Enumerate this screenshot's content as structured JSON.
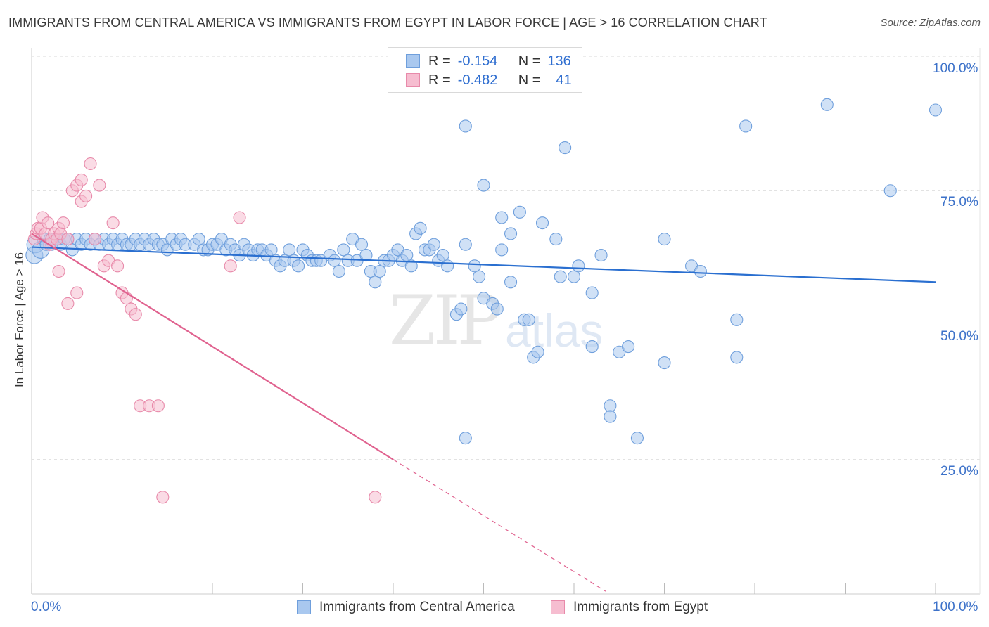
{
  "title": "IMMIGRANTS FROM CENTRAL AMERICA VS IMMIGRANTS FROM EGYPT IN LABOR FORCE | AGE > 16 CORRELATION CHART",
  "source": "Source: ZipAtlas.com",
  "watermark": {
    "zip": "ZIP",
    "atlas": "atlas"
  },
  "legend": {
    "rows": [
      {
        "r_label": "R =",
        "r_value": "-0.154",
        "n_label": "N =",
        "n_value": "136"
      },
      {
        "r_label": "R =",
        "r_value": "-0.482",
        "n_label": "N =",
        "n_value": "41"
      }
    ]
  },
  "colors": {
    "blue_fill": "#a9c8ef",
    "blue_stroke": "#6f9fdc",
    "blue_line": "#2a6fd0",
    "pink_fill": "#f6bdd0",
    "pink_stroke": "#e88aaa",
    "pink_line": "#e0628f",
    "grid": "#d8d8d8",
    "tick_label": "#3d72c9"
  },
  "chart_data": {
    "type": "scatter",
    "title": "IMMIGRANTS FROM CENTRAL AMERICA VS IMMIGRANTS FROM EGYPT IN LABOR FORCE | AGE > 16 CORRELATION CHART",
    "xlabel": "",
    "ylabel": "In Labor Force | Age > 16",
    "xlim": [
      0,
      100
    ],
    "ylim": [
      0,
      100
    ],
    "x_tick_labels": [
      "0.0%",
      "100.0%"
    ],
    "y_ticks": [
      {
        "value": 25,
        "label": "25.0%"
      },
      {
        "value": 50,
        "label": "50.0%"
      },
      {
        "value": 75,
        "label": "75.0%"
      },
      {
        "value": 100,
        "label": "100.0%"
      }
    ],
    "series": [
      {
        "name": "Immigrants from Central America",
        "R": -0.154,
        "N": 136,
        "trend": {
          "x0": 0,
          "y0": 64.5,
          "x1": 100,
          "y1": 58.0
        },
        "points": [
          [
            0.3,
            63
          ],
          [
            0.4,
            65
          ],
          [
            1,
            64
          ],
          [
            1.3,
            66
          ],
          [
            1.6,
            65
          ],
          [
            2,
            66
          ],
          [
            2.2,
            65
          ],
          [
            2.5,
            66
          ],
          [
            3,
            66
          ],
          [
            3.2,
            65
          ],
          [
            3.6,
            66
          ],
          [
            4,
            66
          ],
          [
            4.5,
            64
          ],
          [
            5,
            66
          ],
          [
            5.5,
            65
          ],
          [
            6,
            66
          ],
          [
            6.5,
            65
          ],
          [
            7,
            66
          ],
          [
            7.5,
            65
          ],
          [
            8,
            66
          ],
          [
            8.5,
            65
          ],
          [
            9,
            66
          ],
          [
            9.5,
            65
          ],
          [
            10,
            66
          ],
          [
            10.5,
            65
          ],
          [
            11,
            65
          ],
          [
            11.5,
            66
          ],
          [
            12,
            65
          ],
          [
            12.5,
            66
          ],
          [
            13,
            65
          ],
          [
            13.5,
            66
          ],
          [
            14,
            65
          ],
          [
            14.5,
            65
          ],
          [
            15,
            64
          ],
          [
            15.5,
            66
          ],
          [
            16,
            65
          ],
          [
            16.5,
            66
          ],
          [
            17,
            65
          ],
          [
            18,
            65
          ],
          [
            18.5,
            66
          ],
          [
            19,
            64
          ],
          [
            19.5,
            64
          ],
          [
            20,
            65
          ],
          [
            20.5,
            65
          ],
          [
            21,
            66
          ],
          [
            21.5,
            64
          ],
          [
            22,
            65
          ],
          [
            22.5,
            64
          ],
          [
            23,
            63
          ],
          [
            23.5,
            65
          ],
          [
            24,
            64
          ],
          [
            24.5,
            63
          ],
          [
            25,
            64
          ],
          [
            25.5,
            64
          ],
          [
            26,
            63
          ],
          [
            26.5,
            64
          ],
          [
            27,
            62
          ],
          [
            27.5,
            61
          ],
          [
            28,
            62
          ],
          [
            28.5,
            64
          ],
          [
            29,
            62
          ],
          [
            29.5,
            61
          ],
          [
            30,
            64
          ],
          [
            30.5,
            63
          ],
          [
            31,
            62
          ],
          [
            31.5,
            62
          ],
          [
            32,
            62
          ],
          [
            33,
            63
          ],
          [
            33.5,
            62
          ],
          [
            34,
            60
          ],
          [
            34.5,
            64
          ],
          [
            35,
            62
          ],
          [
            35.5,
            66
          ],
          [
            36,
            62
          ],
          [
            36.5,
            65
          ],
          [
            37,
            63
          ],
          [
            37.5,
            60
          ],
          [
            38,
            58
          ],
          [
            38.5,
            60
          ],
          [
            39,
            62
          ],
          [
            39.5,
            62
          ],
          [
            40,
            63
          ],
          [
            40.5,
            64
          ],
          [
            41,
            62
          ],
          [
            41.5,
            63
          ],
          [
            42,
            61
          ],
          [
            42.5,
            67
          ],
          [
            43,
            68
          ],
          [
            43.5,
            64
          ],
          [
            44,
            64
          ],
          [
            44.5,
            65
          ],
          [
            45,
            62
          ],
          [
            45.5,
            63
          ],
          [
            46,
            61
          ],
          [
            47,
            52
          ],
          [
            47.5,
            53
          ],
          [
            48,
            65
          ],
          [
            48,
            29
          ],
          [
            48,
            87
          ],
          [
            49,
            61
          ],
          [
            49.5,
            59
          ],
          [
            50,
            76
          ],
          [
            50,
            55
          ],
          [
            51,
            54
          ],
          [
            51.5,
            53
          ],
          [
            52,
            70
          ],
          [
            52,
            64
          ],
          [
            53,
            58
          ],
          [
            53,
            67
          ],
          [
            54,
            71
          ],
          [
            54.5,
            51
          ],
          [
            55,
            51
          ],
          [
            55.5,
            44
          ],
          [
            56,
            45
          ],
          [
            56.5,
            69
          ],
          [
            58,
            66
          ],
          [
            58.5,
            59
          ],
          [
            59,
            83
          ],
          [
            60,
            59
          ],
          [
            60.5,
            61
          ],
          [
            62,
            46
          ],
          [
            62,
            56
          ],
          [
            63,
            63
          ],
          [
            64,
            35
          ],
          [
            64,
            33
          ],
          [
            65,
            45
          ],
          [
            66,
            46
          ],
          [
            67,
            29
          ],
          [
            70,
            43
          ],
          [
            70,
            66
          ],
          [
            73,
            61
          ],
          [
            74,
            60
          ],
          [
            78,
            51
          ],
          [
            78,
            44
          ],
          [
            79,
            87
          ],
          [
            88,
            91
          ],
          [
            95,
            75
          ],
          [
            100,
            90
          ]
        ]
      },
      {
        "name": "Immigrants from Egypt",
        "R": -0.482,
        "N": 41,
        "trend": {
          "x0": 0,
          "y0": 67.0,
          "x1": 40.0,
          "y1": 25.0,
          "dashed_to": {
            "x": 63.5,
            "y": 0.5
          }
        },
        "points": [
          [
            0.3,
            66
          ],
          [
            0.5,
            67
          ],
          [
            0.7,
            68
          ],
          [
            1,
            68
          ],
          [
            1.2,
            70
          ],
          [
            1.5,
            67
          ],
          [
            1.8,
            69
          ],
          [
            2,
            65
          ],
          [
            2.2,
            66
          ],
          [
            2.5,
            67
          ],
          [
            2.8,
            66
          ],
          [
            3,
            68
          ],
          [
            3.2,
            67
          ],
          [
            3.5,
            69
          ],
          [
            4,
            66
          ],
          [
            4.5,
            75
          ],
          [
            5,
            76
          ],
          [
            5.5,
            77
          ],
          [
            5.5,
            73
          ],
          [
            6,
            74
          ],
          [
            6.5,
            80
          ],
          [
            7,
            66
          ],
          [
            7.5,
            76
          ],
          [
            8,
            61
          ],
          [
            8.5,
            62
          ],
          [
            9,
            69
          ],
          [
            9.5,
            61
          ],
          [
            10,
            56
          ],
          [
            10.5,
            55
          ],
          [
            11,
            53
          ],
          [
            11.5,
            52
          ],
          [
            12,
            35
          ],
          [
            13,
            35
          ],
          [
            14,
            35
          ],
          [
            14.5,
            18
          ],
          [
            22,
            61
          ],
          [
            23,
            70
          ],
          [
            38,
            18
          ],
          [
            3,
            60
          ],
          [
            4,
            54
          ],
          [
            5,
            56
          ]
        ]
      }
    ]
  },
  "bottom_legend": {
    "items": [
      {
        "label": "Immigrants from Central America"
      },
      {
        "label": "Immigrants from Egypt"
      }
    ]
  }
}
